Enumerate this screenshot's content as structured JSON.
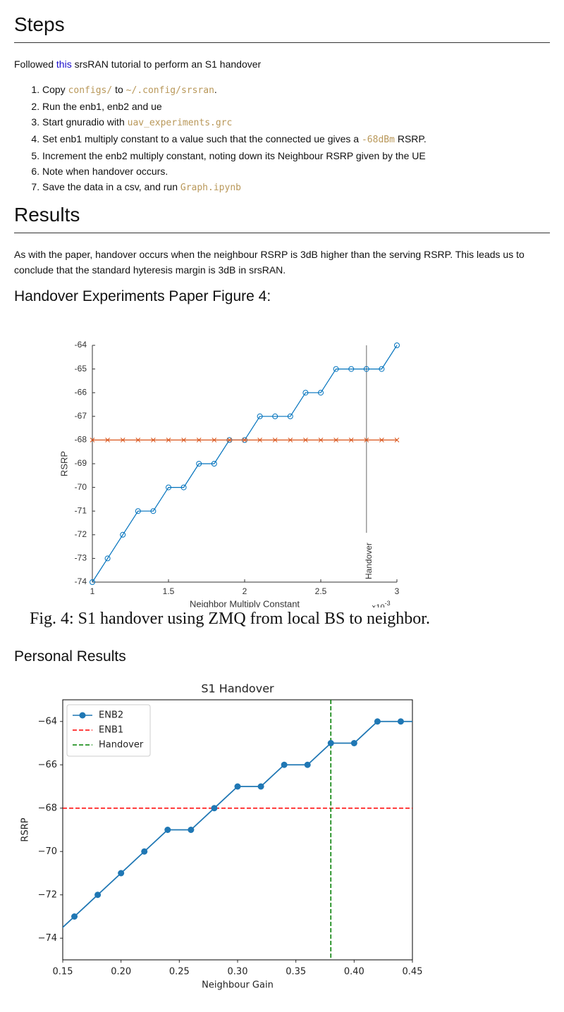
{
  "steps": {
    "heading": "Steps",
    "intro": [
      {
        "text": "Followed "
      },
      {
        "link": "this"
      },
      {
        "text": " srsRAN tutorial to perform an S1 handover"
      }
    ],
    "items": [
      [
        {
          "text": "Copy "
        },
        {
          "code": "configs/"
        },
        {
          "text": " to "
        },
        {
          "code": "~/.config/srsran"
        },
        {
          "text": "."
        }
      ],
      [
        {
          "text": "Run the enb1, enb2 and ue"
        }
      ],
      [
        {
          "text": "Start gnuradio with "
        },
        {
          "code": "uav_experiments.grc"
        }
      ],
      [
        {
          "text": "Set enb1 multiply constant to a value such that the connected ue gives a "
        },
        {
          "code": "-68dBm"
        },
        {
          "text": " RSRP."
        }
      ],
      [
        {
          "text": "Increment the enb2 multiply constant, noting down its Neighbour RSRP given by the UE"
        }
      ],
      [
        {
          "text": "Note when handover occurs."
        }
      ],
      [
        {
          "text": "Save the data in a csv, and run "
        },
        {
          "code": "Graph.ipynb"
        }
      ]
    ]
  },
  "results": {
    "heading": "Results",
    "paragraph": "As with the paper, handover occurs when the neighbour RSRP is 3dB higher than the serving RSRP. This leads us to conclude that the standard hyteresis margin is 3dB in srsRAN.",
    "figure_heading": "Handover Experiments Paper Figure 4:",
    "figure_caption": "Fig. 4: S1 handover using ZMQ from local BS to neighbor.",
    "personal_heading": "Personal Results"
  },
  "chart_data": [
    {
      "type": "line",
      "x_label": "Neighbor Multiply Constant",
      "y_label": "RSRP",
      "x_multiplier": "×10",
      "x_multiplier_exponent": "-3",
      "x": [
        1,
        1.1,
        1.2,
        1.3,
        1.4,
        1.5,
        1.6,
        1.7,
        1.8,
        1.9,
        2,
        2.1,
        2.2,
        2.3,
        2.4,
        2.5,
        2.6,
        2.7,
        2.8,
        2.9,
        3
      ],
      "series": [
        {
          "color": "#0072bd",
          "marker": "o-open",
          "values": [
            -74,
            -73,
            -72,
            -71,
            -71,
            -70,
            -70,
            -69,
            -69,
            -68,
            -68,
            -67,
            -67,
            -67,
            -66,
            -66,
            -65,
            -65,
            -65,
            -65,
            -64
          ]
        },
        {
          "color": "#d95319",
          "marker": "x",
          "values": [
            -68,
            -68,
            -68,
            -68,
            -68,
            -68,
            -68,
            -68,
            -68,
            -68,
            -68,
            -68,
            -68,
            -68,
            -68,
            -68,
            -68,
            -68,
            -68,
            -68,
            -68
          ]
        }
      ],
      "vlines": [
        {
          "value": 2.8,
          "label": "Handover",
          "color": "#808080",
          "linestyle": "solid"
        }
      ],
      "xlim": [
        1,
        3
      ],
      "ylim": [
        -74,
        -64
      ],
      "xticks": [
        1,
        1.5,
        2,
        2.5,
        3
      ],
      "yticks": [
        -74,
        -73,
        -72,
        -71,
        -70,
        -69,
        -68,
        -67,
        -66,
        -65,
        -64
      ],
      "grid": false,
      "box": false
    },
    {
      "type": "line",
      "title": "S1 Handover",
      "x_label": "Neighbour Gain",
      "y_label": "RSRP",
      "x": [
        0.14,
        0.16,
        0.18,
        0.2,
        0.22,
        0.24,
        0.26,
        0.28,
        0.3,
        0.32,
        0.34,
        0.36,
        0.38,
        0.4,
        0.42,
        0.44,
        0.46
      ],
      "series": [
        {
          "name": "ENB2",
          "color": "#1f77b4",
          "marker": "o",
          "values": [
            -74,
            -73,
            -72,
            -71,
            -70,
            -69,
            -69,
            -68,
            -67,
            -67,
            -66,
            -66,
            -65,
            -65,
            -64,
            -64,
            -64
          ]
        }
      ],
      "hlines": [
        {
          "name": "ENB1",
          "value": -68,
          "color": "#ff0000",
          "linestyle": "dashed"
        }
      ],
      "vlines": [
        {
          "name": "Handover",
          "value": 0.38,
          "color": "#008000",
          "linestyle": "dashed"
        }
      ],
      "xlim": [
        0.15,
        0.45
      ],
      "ylim": [
        -75,
        -63
      ],
      "xticks": [
        0.15,
        {
          "value": 0.2,
          "label": "0.20"
        },
        0.25,
        {
          "value": 0.3,
          "label": "0.30"
        },
        0.35,
        {
          "value": 0.4,
          "label": "0.40"
        },
        0.45
      ],
      "yticks": [
        {
          "value": -74,
          "label": "−74"
        },
        {
          "value": -72,
          "label": "−72"
        },
        {
          "value": -70,
          "label": "−70"
        },
        {
          "value": -68,
          "label": "−68"
        },
        {
          "value": -66,
          "label": "−66"
        },
        {
          "value": -64,
          "label": "−64"
        }
      ],
      "grid": false,
      "box": true,
      "legend": "upper left"
    }
  ]
}
